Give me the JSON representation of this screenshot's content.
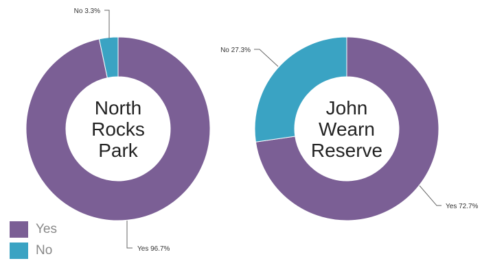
{
  "chart_data": [
    {
      "type": "pie",
      "center_label": [
        "North",
        "Rocks",
        "Park"
      ],
      "slices": [
        {
          "label": "Yes",
          "value": 96.7,
          "callout": "Yes 96.7%"
        },
        {
          "label": "No",
          "value": 3.3,
          "callout": "No 3.3%"
        }
      ]
    },
    {
      "type": "pie",
      "center_label": [
        "John",
        "Wearn",
        "Reserve"
      ],
      "slices": [
        {
          "label": "Yes",
          "value": 72.7,
          "callout": "Yes 72.7%"
        },
        {
          "label": "No",
          "value": 27.3,
          "callout": "No 27.3%"
        }
      ]
    }
  ],
  "legend": [
    {
      "label": "Yes",
      "color": "#7b5f95"
    },
    {
      "label": "No",
      "color": "#3aa3c3"
    }
  ],
  "colors": {
    "Yes": "#7b5f95",
    "No": "#3aa3c3"
  }
}
